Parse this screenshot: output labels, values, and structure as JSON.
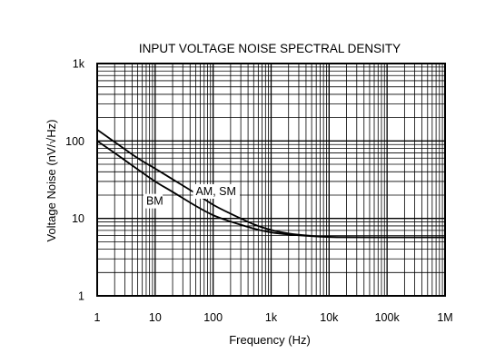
{
  "chart_data": {
    "type": "line",
    "title": "INPUT VOLTAGE NOISE SPECTRAL DENSITY",
    "xlabel": "Frequency (Hz)",
    "ylabel": "Voltage Noise (nV/√Hz)",
    "x_scale": "log",
    "y_scale": "log",
    "xlim": [
      1,
      1000000
    ],
    "ylim": [
      1,
      1000
    ],
    "grid": true,
    "x_ticks": [
      {
        "value": 1,
        "label": "1"
      },
      {
        "value": 10,
        "label": "10"
      },
      {
        "value": 100,
        "label": "100"
      },
      {
        "value": 1000,
        "label": "1k"
      },
      {
        "value": 10000,
        "label": "10k"
      },
      {
        "value": 100000,
        "label": "100k"
      },
      {
        "value": 1000000,
        "label": "1M"
      }
    ],
    "y_ticks": [
      {
        "value": 1,
        "label": "1"
      },
      {
        "value": 10,
        "label": "10"
      },
      {
        "value": 100,
        "label": "100"
      },
      {
        "value": 1000,
        "label": "1k"
      }
    ],
    "series": [
      {
        "name": "AM, SM",
        "x": [
          1,
          2,
          5,
          10,
          20,
          50,
          100,
          200,
          500,
          1000,
          2000,
          5000,
          10000,
          20000,
          100000,
          1000000
        ],
        "y": [
          140,
          97,
          60,
          44,
          32,
          21,
          15,
          11.5,
          8.4,
          7.1,
          6.4,
          5.95,
          5.8,
          5.75,
          5.7,
          5.7
        ]
      },
      {
        "name": "BM",
        "x": [
          1,
          2,
          5,
          10,
          20,
          50,
          100,
          200,
          500,
          1000,
          2000,
          5000,
          10000,
          20000,
          100000,
          1000000
        ],
        "y": [
          100,
          70,
          43,
          30,
          22,
          14.5,
          11,
          9.1,
          7.4,
          6.6,
          6.2,
          5.9,
          5.75,
          5.7,
          5.7,
          5.7
        ]
      }
    ],
    "annotations": [
      {
        "text": "AM, SM",
        "x": 50,
        "y": 20
      },
      {
        "text": "BM",
        "x": 7,
        "y": 15
      }
    ]
  }
}
